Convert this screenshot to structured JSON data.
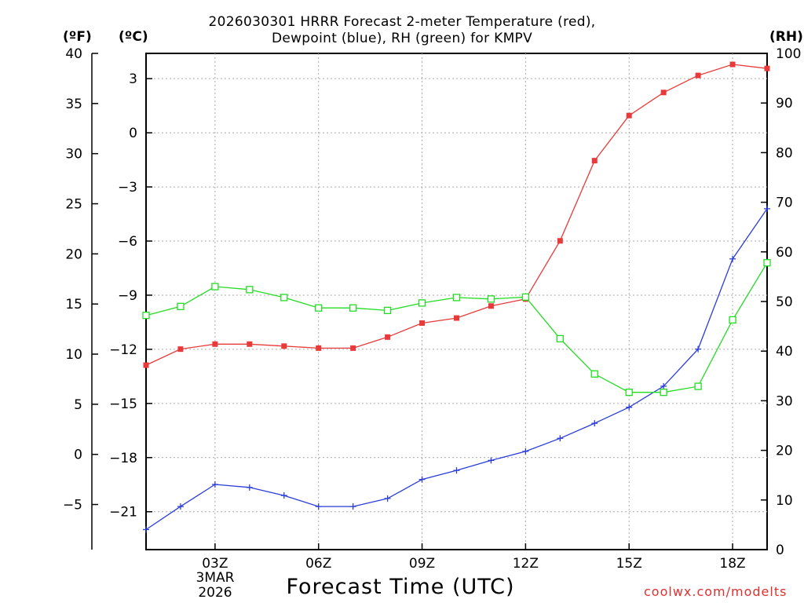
{
  "chart_data": {
    "type": "line",
    "title_line1": "2026030301 HRRR Forecast 2-meter Temperature (red),",
    "title_line2": "Dewpoint (blue), RH (green) for KMPV",
    "unit_f": "(ºF)",
    "unit_c": "(ºC)",
    "unit_rh": "(RH)",
    "xlabel": "Forecast Time (UTC)",
    "date_line1": "3MAR",
    "date_line2": "2026",
    "credit": "coolwx.com/modelts",
    "x_hours": [
      1,
      2,
      3,
      4,
      5,
      6,
      7,
      8,
      9,
      10,
      11,
      12,
      13,
      14,
      15,
      16,
      17,
      18,
      19
    ],
    "xlim": [
      1,
      19
    ],
    "x_ticks": [
      {
        "hour": 3,
        "label": "03Z"
      },
      {
        "hour": 6,
        "label": "06Z"
      },
      {
        "hour": 9,
        "label": "09Z"
      },
      {
        "hour": 12,
        "label": "12Z"
      },
      {
        "hour": 15,
        "label": "15Z"
      },
      {
        "hour": 18,
        "label": "18Z"
      }
    ],
    "f_axis": {
      "range": [
        -9.5,
        40
      ],
      "ticks": [
        -5,
        0,
        5,
        10,
        15,
        20,
        25,
        30,
        35,
        40
      ],
      "labels": [
        "−5",
        "0",
        "5",
        "10",
        "15",
        "20",
        "25",
        "30",
        "35",
        "40"
      ]
    },
    "c_axis": {
      "range": [
        -23.1,
        4.4
      ],
      "ticks": [
        -21,
        -18,
        -15,
        -12,
        -9,
        -6,
        -3,
        0,
        3
      ],
      "labels": [
        "−21",
        "−18",
        "−15",
        "−12",
        "−9",
        "−6",
        "−3",
        "0",
        "3"
      ]
    },
    "rh_axis": {
      "range": [
        0,
        100
      ],
      "ticks": [
        0,
        10,
        20,
        30,
        40,
        50,
        60,
        70,
        80,
        90,
        100
      ],
      "labels": [
        "0",
        "10",
        "20",
        "30",
        "40",
        "50",
        "60",
        "70",
        "80",
        "90",
        "100"
      ]
    },
    "series": [
      {
        "name": "Temperature",
        "axis": "f",
        "color": "#e83a3a",
        "marker": "filled-square",
        "values": [
          8.9,
          10.5,
          11.0,
          11.0,
          10.8,
          10.6,
          10.6,
          11.7,
          13.1,
          13.6,
          14.8,
          15.5,
          21.3,
          29.3,
          33.8,
          36.1,
          37.8,
          38.9,
          38.5
        ]
      },
      {
        "name": "Dewpoint",
        "axis": "f",
        "color": "#2a3ddb",
        "marker": "plus",
        "values": [
          -7.5,
          -5.2,
          -3.0,
          -3.3,
          -4.1,
          -5.2,
          -5.2,
          -4.4,
          -2.5,
          -1.6,
          -0.6,
          0.3,
          1.6,
          3.1,
          4.7,
          6.8,
          10.5,
          19.5,
          24.5
        ]
      },
      {
        "name": "RH",
        "axis": "rh",
        "color": "#22dd22",
        "marker": "open-square",
        "values": [
          47.2,
          49.0,
          53.0,
          52.4,
          50.8,
          48.7,
          48.7,
          48.2,
          49.7,
          50.8,
          50.5,
          50.9,
          42.5,
          35.4,
          31.7,
          31.7,
          32.9,
          46.3,
          57.8
        ]
      }
    ]
  }
}
